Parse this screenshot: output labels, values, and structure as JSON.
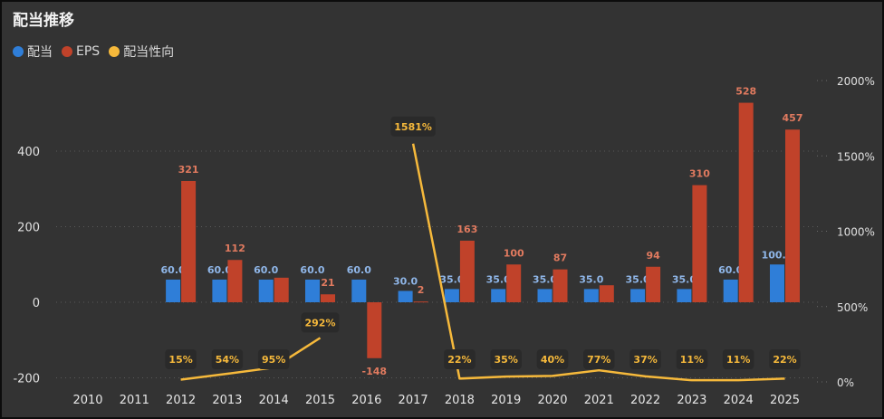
{
  "title": "配当推移",
  "legend": [
    {
      "label": "配当",
      "color": "#2f7ed8"
    },
    {
      "label": "EPS",
      "color": "#c0422a"
    },
    {
      "label": "配当性向",
      "color": "#f6b93b"
    }
  ],
  "chart_data": {
    "type": "bar",
    "categories": [
      "2010",
      "2011",
      "2012",
      "2013",
      "2014",
      "2015",
      "2016",
      "2017",
      "2018",
      "2019",
      "2020",
      "2021",
      "2022",
      "2023",
      "2024",
      "2025"
    ],
    "series": [
      {
        "name": "配当",
        "type": "bar",
        "axis": "left",
        "color": "#2f7ed8",
        "values": [
          null,
          null,
          60,
          60,
          60,
          60,
          60,
          30,
          35,
          35,
          35,
          35,
          35,
          35,
          60,
          100
        ],
        "labels": [
          "",
          "",
          "60.0",
          "60.0",
          "60.0",
          "60.0",
          "60.0",
          "30.0",
          "35.0",
          "35.0",
          "35.0",
          "35.0",
          "35.0",
          "35.0",
          "60.0",
          "100.0"
        ]
      },
      {
        "name": "EPS",
        "type": "bar",
        "axis": "left",
        "color": "#c0422a",
        "values": [
          null,
          null,
          321,
          112,
          65,
          21,
          -148,
          2,
          163,
          100,
          87,
          45,
          94,
          310,
          528,
          457
        ],
        "labels": [
          "",
          "",
          "321",
          "112",
          "",
          "21",
          "-148",
          "2",
          "163",
          "100",
          "87",
          "",
          "94",
          "310",
          "528",
          "457"
        ]
      },
      {
        "name": "配当性向",
        "type": "line",
        "axis": "right",
        "color": "#f6b93b",
        "values": [
          null,
          null,
          15,
          54,
          95,
          292,
          null,
          1581,
          22,
          35,
          40,
          77,
          37,
          11,
          11,
          22
        ],
        "labels": [
          "",
          "",
          "15%",
          "54%",
          "95%",
          "292%",
          "",
          "1581%",
          "22%",
          "35%",
          "40%",
          "77%",
          "37%",
          "11%",
          "11%",
          "22%"
        ]
      }
    ],
    "y_left": {
      "ticks": [
        -200,
        0,
        200,
        400
      ],
      "range": [
        -200,
        600
      ]
    },
    "y_right": {
      "ticks": [
        "0%",
        "500%",
        "1000%",
        "1500%",
        "2000%"
      ],
      "range": [
        0,
        2000
      ]
    },
    "legend_position": "top-left",
    "grid": "dotted"
  }
}
